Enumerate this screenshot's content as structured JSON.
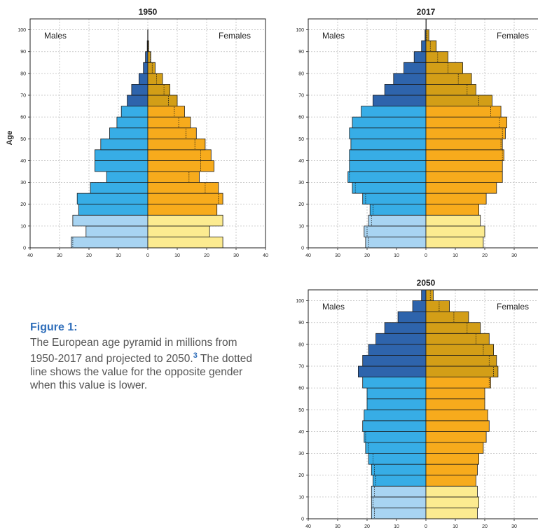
{
  "colors": {
    "male_young": "#a8d4f2",
    "male_working": "#37ade6",
    "male_old": "#2e64ac",
    "female_young": "#fceb90",
    "female_working": "#f7ab1c",
    "female_old": "#d39e17",
    "outline": "#1a1a1a",
    "grid": "#bdbdbd"
  },
  "caption": {
    "title": "Figure 1:",
    "text": "The European age pyramid in millions from 1950-2017 and projected to 2050.",
    "superscript": "3",
    "text2": "The dotted line shows the value for the opposite gender when this value is lower."
  },
  "chart_data": [
    {
      "type": "bar",
      "title": "1950",
      "ylabel": "Age",
      "male_label": "Males",
      "female_label": "Females",
      "xlim": [
        -40,
        40
      ],
      "x_ticks": [
        "40",
        "30",
        "20",
        "10",
        "0",
        "10",
        "20",
        "30",
        "40"
      ],
      "ylim": [
        0,
        105
      ],
      "y_ticks": [
        "0",
        "10",
        "20",
        "30",
        "40",
        "50",
        "60",
        "70",
        "80",
        "90",
        "100"
      ],
      "age_groups": [
        "0-4",
        "5-9",
        "10-14",
        "15-19",
        "20-24",
        "25-29",
        "30-34",
        "35-39",
        "40-44",
        "45-49",
        "50-54",
        "55-59",
        "60-64",
        "65-69",
        "70-74",
        "75-79",
        "80-84",
        "85-89",
        "90-94",
        "95-99",
        "100+"
      ],
      "males": [
        26.0,
        21.0,
        25.5,
        23.5,
        24.0,
        19.5,
        14.0,
        18.0,
        18.0,
        16.0,
        13.0,
        10.5,
        9.0,
        7.0,
        5.5,
        3.0,
        1.5,
        0.8,
        0.2,
        0.05,
        0.0
      ],
      "females": [
        25.5,
        21.0,
        25.5,
        23.5,
        25.5,
        24.0,
        17.5,
        22.5,
        21.5,
        19.5,
        16.5,
        14.5,
        12.5,
        10.0,
        7.5,
        5.0,
        2.5,
        1.0,
        0.3,
        0.05,
        0.0
      ]
    },
    {
      "type": "bar",
      "title": "2017",
      "male_label": "Males",
      "female_label": "Females",
      "xlim": [
        -40,
        40
      ],
      "x_ticks": [
        "40",
        "30",
        "20",
        "10",
        "0",
        "10",
        "20",
        "30",
        "40"
      ],
      "ylim": [
        0,
        105
      ],
      "y_ticks": [
        "0",
        "10",
        "20",
        "30",
        "40",
        "50",
        "60",
        "70",
        "80",
        "90",
        "100"
      ],
      "age_groups": [
        "0-4",
        "5-9",
        "10-14",
        "15-19",
        "20-24",
        "25-29",
        "30-34",
        "35-39",
        "40-44",
        "45-49",
        "50-54",
        "55-59",
        "60-64",
        "65-69",
        "70-74",
        "75-79",
        "80-84",
        "85-89",
        "90-94",
        "95-99",
        "100+"
      ],
      "males": [
        20.5,
        21.0,
        19.5,
        19.0,
        21.5,
        25.0,
        26.5,
        26.0,
        26.0,
        25.5,
        26.0,
        25.0,
        22.0,
        18.0,
        14.0,
        11.0,
        7.5,
        4.0,
        1.5,
        0.3,
        0.0
      ],
      "females": [
        19.5,
        20.0,
        18.5,
        18.0,
        20.5,
        24.0,
        26.0,
        26.0,
        26.5,
        26.0,
        27.0,
        27.5,
        25.5,
        22.5,
        17.0,
        15.5,
        12.5,
        7.5,
        3.5,
        1.0,
        0.1
      ]
    },
    {
      "type": "bar",
      "title": "2050",
      "male_label": "Males",
      "female_label": "Females",
      "xlim": [
        -40,
        40
      ],
      "x_ticks": [
        "40",
        "30",
        "20",
        "10",
        "0",
        "10",
        "20",
        "30",
        "40"
      ],
      "ylim": [
        0,
        105
      ],
      "y_ticks": [
        "0",
        "10",
        "20",
        "30",
        "40",
        "50",
        "60",
        "70",
        "80",
        "90",
        "100"
      ],
      "age_groups": [
        "0-4",
        "5-9",
        "10-14",
        "15-19",
        "20-24",
        "25-29",
        "30-34",
        "35-39",
        "40-44",
        "45-49",
        "50-54",
        "55-59",
        "60-64",
        "65-69",
        "70-74",
        "75-79",
        "80-84",
        "85-89",
        "90-94",
        "95-99",
        "100+"
      ],
      "males": [
        18.5,
        18.5,
        18.5,
        18.0,
        18.5,
        19.5,
        20.5,
        21.0,
        21.5,
        21.0,
        20.0,
        20.0,
        21.5,
        23.0,
        21.5,
        19.5,
        17.0,
        14.0,
        9.5,
        4.5,
        1.5
      ],
      "females": [
        17.5,
        18.0,
        17.5,
        17.0,
        17.5,
        18.0,
        19.5,
        20.5,
        21.5,
        21.0,
        20.0,
        20.0,
        22.0,
        24.5,
        24.0,
        23.0,
        21.5,
        18.5,
        14.5,
        8.0,
        2.5
      ]
    }
  ]
}
